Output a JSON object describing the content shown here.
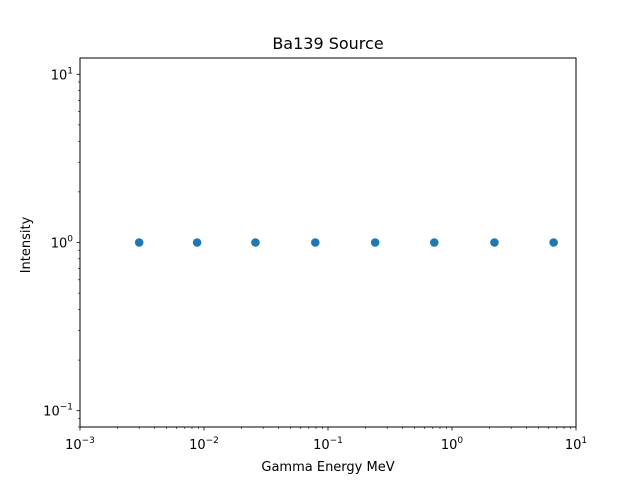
{
  "chart_data": {
    "type": "scatter",
    "title": "Ba139 Source",
    "xlabel": "Gamma Energy MeV",
    "ylabel": "Intensity",
    "xscale": "log",
    "yscale": "log",
    "xlim": [
      0.001,
      10
    ],
    "ylim": [
      0.08,
      12.5
    ],
    "grid": false,
    "legend": "none",
    "x_ticks": [
      {
        "base": "10",
        "exp": "−3"
      },
      {
        "base": "10",
        "exp": "−2"
      },
      {
        "base": "10",
        "exp": "−1"
      },
      {
        "base": "10",
        "exp": "0"
      },
      {
        "base": "10",
        "exp": "1"
      }
    ],
    "y_ticks": [
      {
        "base": "10",
        "exp": "−1"
      },
      {
        "base": "10",
        "exp": "0"
      },
      {
        "base": "10",
        "exp": "1"
      }
    ],
    "series": [
      {
        "color": "#1f77b4",
        "x": [
          0.003,
          0.0088,
          0.026,
          0.079,
          0.24,
          0.72,
          2.2,
          6.6
        ],
        "y": [
          1,
          1,
          1,
          1,
          1,
          1,
          1,
          1
        ]
      }
    ]
  }
}
